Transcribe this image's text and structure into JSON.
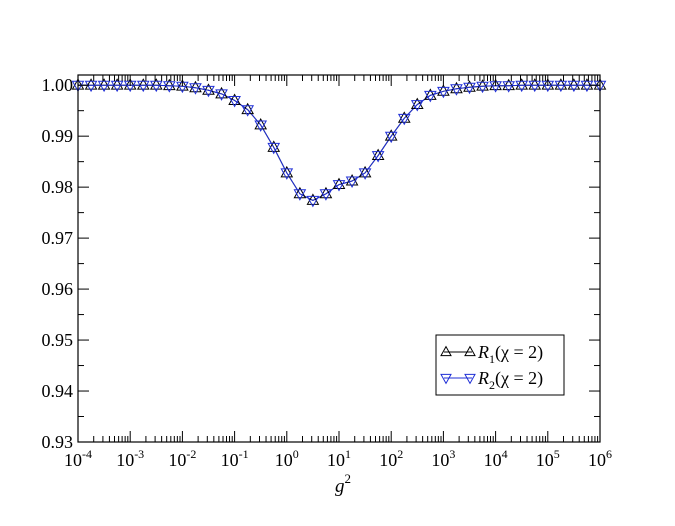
{
  "chart_data": {
    "type": "line",
    "xlabel": "g",
    "xlabel_superscript": "2",
    "ylabel": "",
    "xscale": "log",
    "xlim": [
      0.0001,
      1000000
    ],
    "ylim": [
      0.93,
      1.002
    ],
    "x_tick_labels": [
      {
        "base": "10",
        "exp": "-4"
      },
      {
        "base": "10",
        "exp": "-3"
      },
      {
        "base": "10",
        "exp": "-2"
      },
      {
        "base": "10",
        "exp": "-1"
      },
      {
        "base": "10",
        "exp": "0"
      },
      {
        "base": "10",
        "exp": "1"
      },
      {
        "base": "10",
        "exp": "2"
      },
      {
        "base": "10",
        "exp": "3"
      },
      {
        "base": "10",
        "exp": "4"
      },
      {
        "base": "10",
        "exp": "5"
      },
      {
        "base": "10",
        "exp": "6"
      }
    ],
    "y_tick_labels": [
      "0.93",
      "0.94",
      "0.95",
      "0.96",
      "0.97",
      "0.98",
      "0.99",
      "1.00"
    ],
    "legend_position": "lower-right",
    "grid": false,
    "series": [
      {
        "name": "R1(χ = 2)",
        "label_main": "R",
        "label_sub": "1",
        "label_rest": "(χ = 2)",
        "marker": "triangle-up",
        "color": "#000000",
        "x": [
          0.0001,
          0.000178,
          0.000316,
          0.000562,
          0.001,
          0.00178,
          0.00316,
          0.00562,
          0.01,
          0.0178,
          0.0316,
          0.0562,
          0.1,
          0.178,
          0.316,
          0.562,
          1,
          1.78,
          3.16,
          5.62,
          10,
          17.8,
          31.6,
          56.2,
          100,
          178,
          316,
          562,
          1000,
          1780,
          3160,
          5620,
          10000,
          17800,
          31600,
          56200,
          100000,
          178000,
          316000,
          562000,
          1000000
        ],
        "y": [
          1.0,
          1.0,
          1.0,
          1.0,
          1.0,
          1.0,
          1.0,
          0.9999,
          0.9998,
          0.9995,
          0.999,
          0.9983,
          0.997,
          0.9952,
          0.9922,
          0.9878,
          0.9828,
          0.9787,
          0.9774,
          0.9787,
          0.9805,
          0.9812,
          0.9828,
          0.9862,
          0.99,
          0.9935,
          0.9962,
          0.998,
          0.9988,
          0.9993,
          0.9996,
          0.9998,
          0.9999,
          0.9999,
          1.0,
          1.0,
          1.0,
          1.0,
          1.0,
          1.0,
          1.0
        ]
      },
      {
        "name": "R2(χ = 2)",
        "label_main": "R",
        "label_sub": "2",
        "label_rest": "(χ = 2)",
        "marker": "triangle-down",
        "color": "#1f2fd6",
        "x": [
          0.0001,
          0.000178,
          0.000316,
          0.000562,
          0.001,
          0.00178,
          0.00316,
          0.00562,
          0.01,
          0.0178,
          0.0316,
          0.0562,
          0.1,
          0.178,
          0.316,
          0.562,
          1,
          1.78,
          3.16,
          5.62,
          10,
          17.8,
          31.6,
          56.2,
          100,
          178,
          316,
          562,
          1000,
          1780,
          3160,
          5620,
          10000,
          17800,
          31600,
          56200,
          100000,
          178000,
          316000,
          562000,
          1000000
        ],
        "y": [
          1.0,
          1.0,
          1.0,
          1.0,
          1.0,
          1.0,
          1.0,
          0.9999,
          0.9998,
          0.9995,
          0.999,
          0.9983,
          0.997,
          0.9952,
          0.9922,
          0.9878,
          0.9828,
          0.9787,
          0.9774,
          0.9787,
          0.9805,
          0.9812,
          0.9828,
          0.9862,
          0.99,
          0.9935,
          0.9962,
          0.998,
          0.9988,
          0.9993,
          0.9996,
          0.9998,
          0.9999,
          0.9999,
          1.0,
          1.0,
          1.0,
          1.0,
          1.0,
          1.0,
          1.0
        ]
      }
    ]
  }
}
